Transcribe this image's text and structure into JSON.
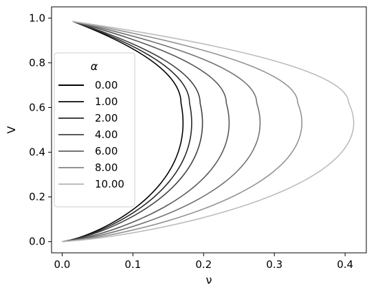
{
  "chart_data": {
    "type": "line",
    "xlabel": "ν",
    "ylabel": "V",
    "xlim": [
      -0.015,
      0.43
    ],
    "ylim": [
      -0.05,
      1.05
    ],
    "x_ticks": [
      "0.0",
      "0.1",
      "0.2",
      "0.3",
      "0.4"
    ],
    "y_ticks": [
      "0.0",
      "0.2",
      "0.4",
      "0.6",
      "0.8",
      "1.0"
    ],
    "grid": false,
    "legend": {
      "title": "α",
      "placement": "center-left"
    },
    "curve_shape": {
      "start": [
        0.0,
        0.0
      ],
      "end": [
        0.015,
        0.985
      ],
      "peak_v": 0.62
    },
    "series": [
      {
        "name": "0.00",
        "max_nu": 0.168,
        "color": "#000000"
      },
      {
        "name": "1.00",
        "max_nu": 0.18,
        "color": "#262626"
      },
      {
        "name": "2.00",
        "max_nu": 0.195,
        "color": "#404040"
      },
      {
        "name": "4.00",
        "max_nu": 0.232,
        "color": "#585858"
      },
      {
        "name": "6.00",
        "max_nu": 0.275,
        "color": "#737373"
      },
      {
        "name": "8.00",
        "max_nu": 0.333,
        "color": "#939393"
      },
      {
        "name": "10.00",
        "max_nu": 0.405,
        "color": "#bcbcbc"
      }
    ]
  }
}
